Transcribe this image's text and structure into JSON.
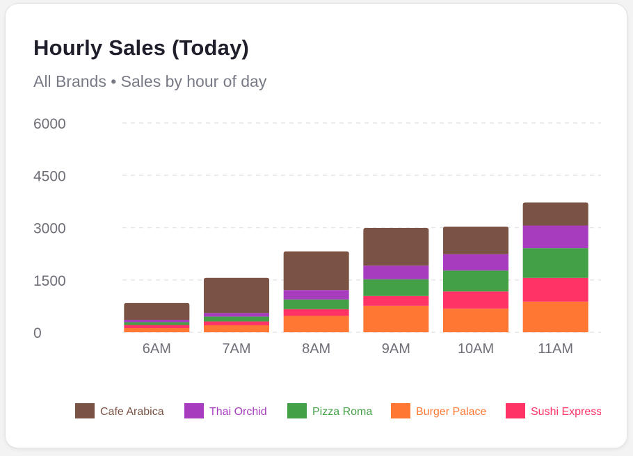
{
  "card": {
    "title": "Hourly Sales (Today)",
    "subtitle": "All Brands • Sales by hour of day"
  },
  "chart_data": {
    "type": "bar",
    "stacked": true,
    "title": "Hourly Sales (Today)",
    "subtitle": "All Brands • Sales by hour of day",
    "xlabel": "",
    "ylabel": "",
    "ylim": [
      0,
      6000
    ],
    "yticks": [
      0,
      1500,
      3000,
      4500,
      6000
    ],
    "grid": true,
    "legend_position": "bottom",
    "categories": [
      "6AM",
      "7AM",
      "8AM",
      "9AM",
      "10AM",
      "11AM"
    ],
    "series": [
      {
        "name": "Burger Palace",
        "color": "#ff7733",
        "values": [
          120,
          200,
          470,
          760,
          680,
          880
        ]
      },
      {
        "name": "Sushi Express",
        "color": "#ff3366",
        "values": [
          90,
          110,
          190,
          280,
          490,
          680
        ]
      },
      {
        "name": "Pizza Roma",
        "color": "#43a047",
        "values": [
          80,
          140,
          280,
          480,
          600,
          850
        ]
      },
      {
        "name": "Thai Orchid",
        "color": "#a83cbf",
        "values": [
          70,
          100,
          270,
          390,
          470,
          650
        ]
      },
      {
        "name": "Cafe Arabica",
        "color": "#7a5345",
        "values": [
          480,
          1010,
          1110,
          1080,
          790,
          660
        ]
      }
    ],
    "legend_order": [
      "Cafe Arabica",
      "Thai Orchid",
      "Pizza Roma",
      "Burger Palace",
      "Sushi Express"
    ]
  }
}
